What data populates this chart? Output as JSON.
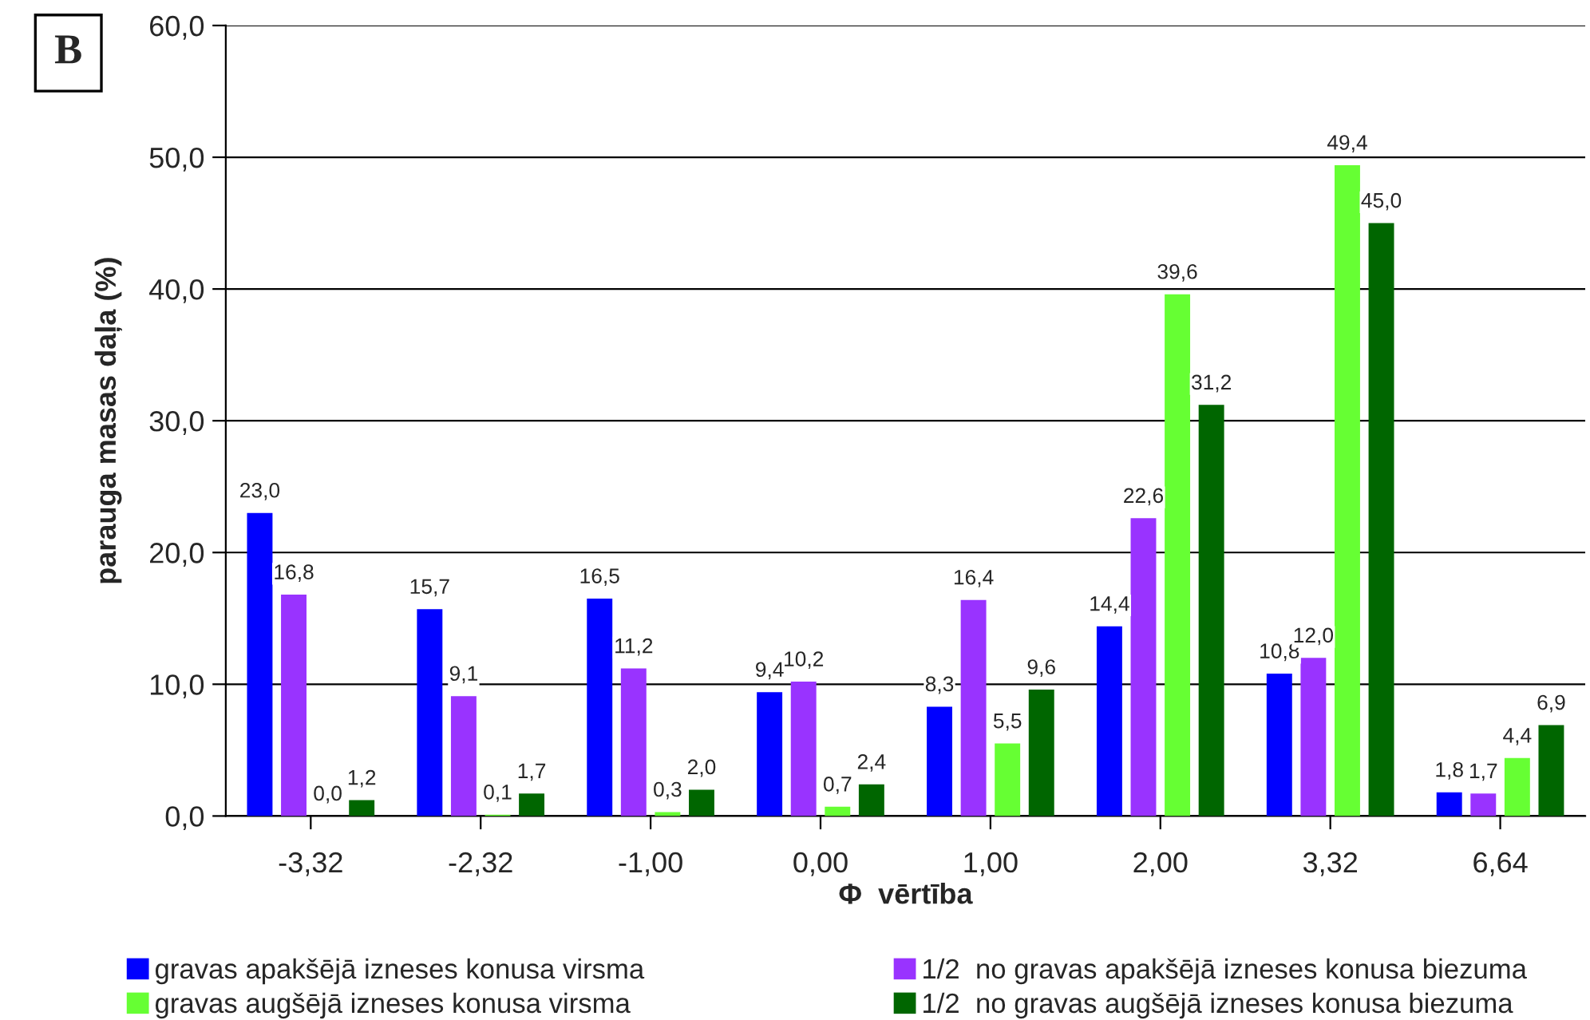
{
  "chart_data": {
    "type": "bar",
    "xlabel": "Φ  vērtība",
    "ylabel": "parauga masas daļa (%)",
    "annotations": [
      "B"
    ],
    "categories": [
      "-3,32",
      "-2,32",
      "-1,00",
      "0,00",
      "1,00",
      "2,00",
      "3,32",
      "6,64"
    ],
    "series": [
      {
        "name": "gravas apakšējā izneses konusa virsma",
        "color": "#0000ff",
        "values": [
          23.0,
          15.7,
          16.5,
          9.4,
          8.3,
          14.4,
          10.8,
          1.8
        ],
        "value_labels": [
          "23,0",
          "15,7",
          "16,5",
          "9,4",
          "8,3",
          "14,4",
          "10,8",
          "1,8"
        ]
      },
      {
        "name": "1/2  no gravas apakšējā izneses konusa biezuma",
        "color": "#9933ff",
        "values": [
          16.8,
          9.1,
          11.2,
          10.2,
          16.4,
          22.6,
          12.0,
          1.7
        ],
        "value_labels": [
          "16,8",
          "9,1",
          "11,2",
          "10,2",
          "16,4",
          "22,6",
          "12,0",
          "1,7"
        ]
      },
      {
        "name": "gravas augšējā izneses konusa virsma",
        "color": "#66ff33",
        "values": [
          0.0,
          0.1,
          0.3,
          0.7,
          5.5,
          39.6,
          49.4,
          4.4
        ],
        "value_labels": [
          "0,0",
          "0,1",
          "0,3",
          "0,7",
          "5,5",
          "39,6",
          "49,4",
          "4,4"
        ]
      },
      {
        "name": "1/2  no gravas augšējā izneses konusa biezuma",
        "color": "#006600",
        "values": [
          1.2,
          1.7,
          2.0,
          2.4,
          9.6,
          31.2,
          45.0,
          6.9
        ],
        "value_labels": [
          "1,2",
          "1,7",
          "2,0",
          "2,4",
          "9,6",
          "31,2",
          "45,0",
          "6,9"
        ]
      }
    ],
    "ylim": [
      0,
      60
    ],
    "yticks": [
      {
        "value": 0,
        "label": "0,0"
      },
      {
        "value": 10,
        "label": "10,0"
      },
      {
        "value": 20,
        "label": "20,0"
      },
      {
        "value": 30,
        "label": "30,0"
      },
      {
        "value": 40,
        "label": "40,0"
      },
      {
        "value": 50,
        "label": "50,0"
      },
      {
        "value": 60,
        "label": "60,0"
      }
    ],
    "grid": "y",
    "legend": "bottom"
  }
}
